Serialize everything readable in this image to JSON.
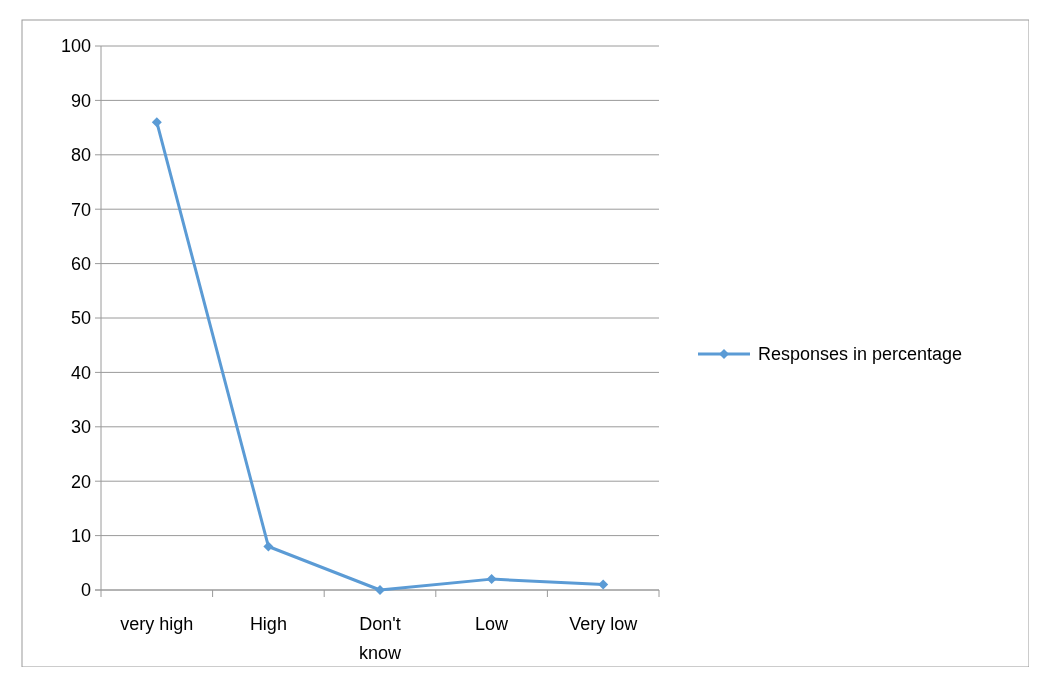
{
  "chart_data": {
    "type": "line",
    "categories": [
      "very high",
      "High",
      "Don't know",
      "Low",
      "Very low"
    ],
    "series": [
      {
        "name": "Responses in percentage",
        "color": "#5b9bd5",
        "values": [
          86,
          8,
          0,
          2,
          1
        ]
      }
    ],
    "ylim": [
      0,
      100
    ],
    "yticks": [
      0,
      10,
      20,
      30,
      40,
      50,
      60,
      70,
      80,
      90,
      100
    ],
    "grid": "y",
    "legend": "right",
    "marker": "diamond"
  }
}
